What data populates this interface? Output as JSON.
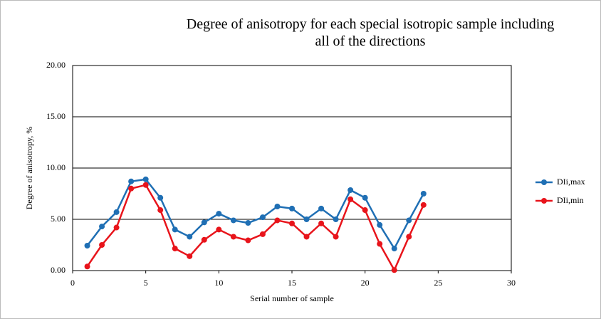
{
  "chart_data": {
    "type": "line",
    "title": "Degree of anisotropy for each special isotropic sample including all of the directions",
    "x_label": "Serial number of sample",
    "y_label": "Degree of anisotropy, %",
    "x": [
      1,
      2,
      3,
      4,
      5,
      6,
      7,
      8,
      9,
      10,
      11,
      12,
      13,
      14,
      15,
      16,
      17,
      18,
      19,
      20,
      21,
      22,
      23,
      24
    ],
    "series": [
      {
        "name": "DIi,max",
        "color": "#1f6fb4",
        "values": [
          2.43,
          4.3,
          5.7,
          8.7,
          8.9,
          7.1,
          4.0,
          3.3,
          4.7,
          5.55,
          4.9,
          4.65,
          5.2,
          6.25,
          6.05,
          5.0,
          6.05,
          5.0,
          7.85,
          7.1,
          4.45,
          2.15,
          4.9,
          7.5
        ]
      },
      {
        "name": "DIi,min",
        "color": "#e8141b",
        "values": [
          0.4,
          2.5,
          4.2,
          8.0,
          8.35,
          5.9,
          2.15,
          1.4,
          3.0,
          4.0,
          3.3,
          2.95,
          3.55,
          4.9,
          4.6,
          3.3,
          4.6,
          3.3,
          6.95,
          5.9,
          2.6,
          0.05,
          3.3,
          6.4
        ]
      }
    ],
    "xlim": [
      0,
      30
    ],
    "xticks": [
      0,
      5,
      10,
      15,
      20,
      25,
      30
    ],
    "ylim": [
      0,
      20
    ],
    "yticks": [
      {
        "value": 0,
        "label": "0.00"
      },
      {
        "value": 5,
        "label": "5.00"
      },
      {
        "value": 10,
        "label": "10.00"
      },
      {
        "value": 15,
        "label": "15.00"
      },
      {
        "value": 20,
        "label": "20.00"
      }
    ],
    "grid": true,
    "legend": "right"
  }
}
